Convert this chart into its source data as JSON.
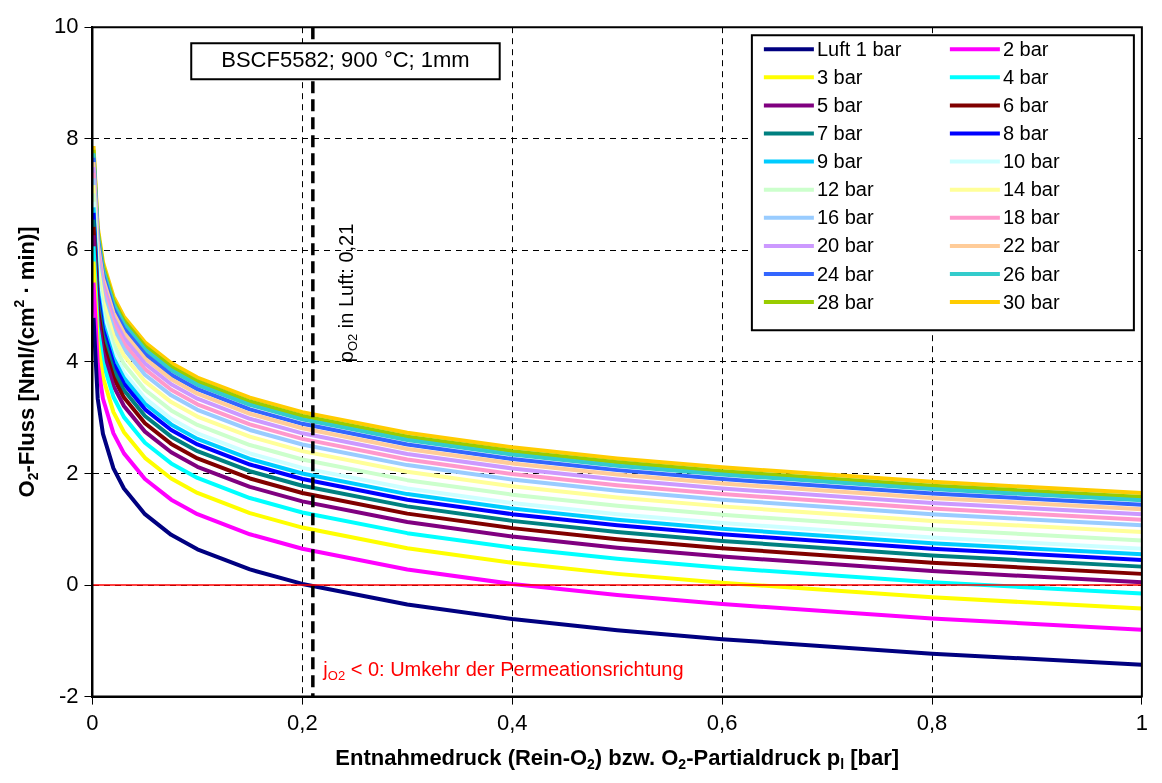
{
  "chart_data": {
    "type": "line",
    "title": "BSCF5582; 900 °C; 1mm",
    "xlabel": "Entnahmedruck (Rein-O$_{2}$) bzw. O$_{2}$-Partialdruck p$_{l}$ [bar]",
    "ylabel": "O$_{2}$-Fluss [Nml/(cm$^{2}$ · min)]",
    "annotations": [
      "j$_{O2}$ < 0: Umkehr der Permeationsrichtung"
    ],
    "x": [
      0.001,
      0.005,
      0.01,
      0.02,
      0.03,
      0.05,
      0.075,
      0.1,
      0.15,
      0.2,
      0.3,
      0.4,
      0.5,
      0.6,
      0.8,
      1
    ],
    "xlim": [
      0,
      1
    ],
    "xticks": [
      0,
      {
        "value": 0.2,
        "label": "0,2"
      },
      {
        "value": 0.4,
        "label": "0,4"
      },
      {
        "value": 0.6,
        "label": "0,6"
      },
      {
        "value": 0.8,
        "label": "0,8"
      },
      1
    ],
    "ylim": [
      -2,
      10
    ],
    "yticks": [
      -2,
      0,
      2,
      4,
      6,
      8,
      10
    ],
    "grid": true,
    "legend": "top right",
    "marker": "none",
    "line_style": "solid",
    "ref_lines": [
      {
        "axis": "x",
        "value": 0.21,
        "label": "p$_{O2}$ in Luft: 0,21",
        "color": "#000000",
        "line_style": "dashed"
      },
      {
        "axis": "y",
        "value": 0,
        "label": null,
        "color": "#ff0000",
        "line_style": "solid"
      }
    ],
    "series": [
      {
        "name": "Luft 1 bar",
        "color": "#000080",
        "values": [
          4.79,
          3.34,
          2.71,
          2.09,
          1.73,
          1.27,
          0.9,
          0.64,
          0.28,
          0.02,
          -0.35,
          -0.61,
          -0.81,
          -0.97,
          -1.23,
          -1.43
        ]
      },
      {
        "name": "2 bar",
        "color": "#ff00ff",
        "values": [
          5.42,
          3.97,
          3.34,
          2.72,
          2.36,
          1.9,
          1.53,
          1.27,
          0.91,
          0.65,
          0.28,
          0.02,
          -0.18,
          -0.34,
          -0.6,
          -0.8
        ]
      },
      {
        "name": "3 bar",
        "color": "#ffff00",
        "values": [
          5.8,
          4.35,
          3.72,
          3.1,
          2.74,
          2.28,
          1.91,
          1.65,
          1.29,
          1.03,
          0.66,
          0.4,
          0.2,
          0.04,
          -0.22,
          -0.42
        ]
      },
      {
        "name": "4 bar",
        "color": "#00ffff",
        "values": [
          6.07,
          4.62,
          3.99,
          3.37,
          3.01,
          2.55,
          2.18,
          1.92,
          1.56,
          1.3,
          0.93,
          0.67,
          0.47,
          0.31,
          0.05,
          -0.15
        ]
      },
      {
        "name": "5 bar",
        "color": "#800080",
        "values": [
          6.27,
          4.82,
          4.19,
          3.57,
          3.21,
          2.75,
          2.38,
          2.12,
          1.76,
          1.5,
          1.13,
          0.87,
          0.67,
          0.51,
          0.25,
          0.05
        ]
      },
      {
        "name": "6 bar",
        "color": "#800000",
        "values": [
          6.42,
          4.97,
          4.34,
          3.72,
          3.36,
          2.9,
          2.53,
          2.27,
          1.91,
          1.65,
          1.28,
          1.02,
          0.82,
          0.66,
          0.4,
          0.2
        ]
      },
      {
        "name": "7 bar",
        "color": "#008080",
        "values": [
          6.55,
          5.1,
          4.47,
          3.85,
          3.49,
          3.03,
          2.66,
          2.4,
          2.04,
          1.78,
          1.41,
          1.15,
          0.95,
          0.79,
          0.53,
          0.33
        ]
      },
      {
        "name": "8 bar",
        "color": "#0000ff",
        "values": [
          6.67,
          5.22,
          4.59,
          3.97,
          3.61,
          3.15,
          2.78,
          2.52,
          2.16,
          1.9,
          1.53,
          1.27,
          1.07,
          0.91,
          0.65,
          0.45
        ]
      },
      {
        "name": "9 bar",
        "color": "#00ccff",
        "values": [
          6.77,
          5.32,
          4.69,
          4.07,
          3.71,
          3.25,
          2.88,
          2.62,
          2.26,
          2,
          1.63,
          1.37,
          1.17,
          1.01,
          0.75,
          0.55
        ]
      },
      {
        "name": "10 bar",
        "color": "#ccffff",
        "values": [
          6.87,
          5.42,
          4.79,
          4.17,
          3.81,
          3.35,
          2.98,
          2.72,
          2.36,
          2.1,
          1.73,
          1.47,
          1.27,
          1.11,
          0.85,
          0.65
        ]
      },
      {
        "name": "12 bar",
        "color": "#ccffcc",
        "values": [
          7.02,
          5.57,
          4.94,
          4.32,
          3.96,
          3.5,
          3.13,
          2.87,
          2.51,
          2.25,
          1.88,
          1.62,
          1.42,
          1.26,
          1,
          0.8
        ]
      },
      {
        "name": "14 bar",
        "color": "#ffff99",
        "values": [
          7.17,
          5.72,
          5.09,
          4.47,
          4.11,
          3.65,
          3.28,
          3.02,
          2.66,
          2.4,
          2.03,
          1.77,
          1.57,
          1.41,
          1.15,
          0.95
        ]
      },
      {
        "name": "16 bar",
        "color": "#99ccff",
        "values": [
          7.29,
          5.84,
          5.21,
          4.59,
          4.23,
          3.77,
          3.4,
          3.14,
          2.78,
          2.52,
          2.15,
          1.89,
          1.69,
          1.53,
          1.27,
          1.07
        ]
      },
      {
        "name": "18 bar",
        "color": "#ff99cc",
        "values": [
          7.39,
          5.94,
          5.31,
          4.69,
          4.33,
          3.87,
          3.5,
          3.24,
          2.88,
          2.62,
          2.25,
          1.99,
          1.79,
          1.63,
          1.37,
          1.17
        ]
      },
      {
        "name": "20 bar",
        "color": "#cc99ff",
        "values": [
          7.49,
          6.04,
          5.41,
          4.79,
          4.43,
          3.97,
          3.6,
          3.34,
          2.98,
          2.72,
          2.35,
          2.09,
          1.89,
          1.73,
          1.47,
          1.27
        ]
      },
      {
        "name": "22 bar",
        "color": "#ffcc99",
        "values": [
          7.58,
          6.13,
          5.5,
          4.88,
          4.52,
          4.06,
          3.69,
          3.43,
          3.07,
          2.81,
          2.44,
          2.18,
          1.98,
          1.82,
          1.56,
          1.36
        ]
      },
      {
        "name": "24 bar",
        "color": "#3366ff",
        "values": [
          7.66,
          6.21,
          5.58,
          4.96,
          4.6,
          4.14,
          3.77,
          3.51,
          3.15,
          2.89,
          2.52,
          2.26,
          2.06,
          1.9,
          1.64,
          1.44
        ]
      },
      {
        "name": "26 bar",
        "color": "#33cccc",
        "values": [
          7.74,
          6.29,
          5.66,
          5.04,
          4.68,
          4.22,
          3.85,
          3.59,
          3.23,
          2.97,
          2.6,
          2.34,
          2.14,
          1.98,
          1.72,
          1.52
        ]
      },
      {
        "name": "28 bar",
        "color": "#99cc00",
        "values": [
          7.8,
          6.35,
          5.72,
          5.1,
          4.74,
          4.28,
          3.91,
          3.65,
          3.29,
          3.03,
          2.66,
          2.4,
          2.2,
          2.04,
          1.78,
          1.58
        ]
      },
      {
        "name": "30 bar",
        "color": "#ffcc00",
        "values": [
          7.87,
          6.42,
          5.79,
          5.17,
          4.81,
          4.35,
          3.98,
          3.72,
          3.36,
          3.1,
          2.73,
          2.47,
          2.27,
          2.11,
          1.85,
          1.65
        ]
      }
    ]
  }
}
